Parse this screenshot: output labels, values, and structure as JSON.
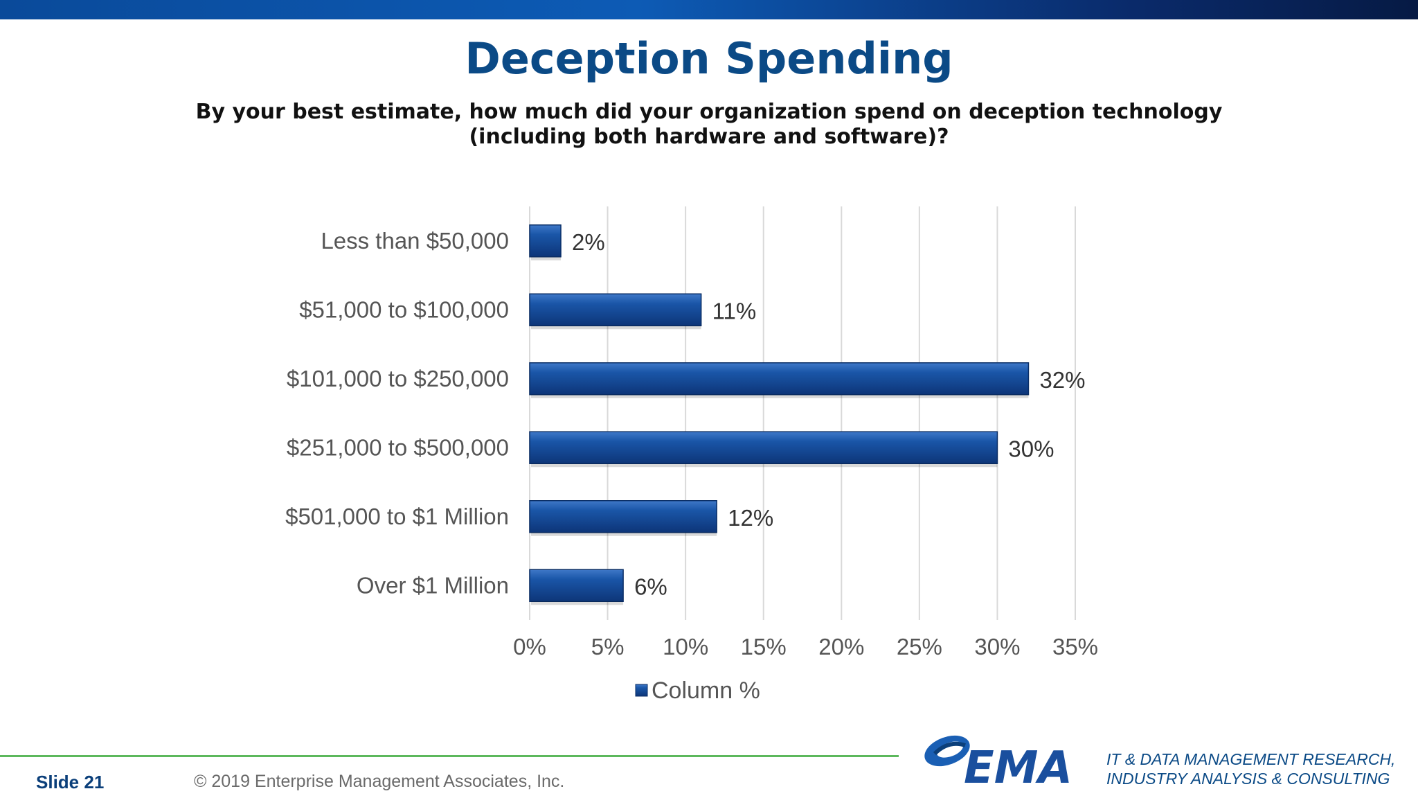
{
  "slide": {
    "title": "Deception Spending",
    "subtitle_line1": "By your best estimate, how much did your organization spend on deception technology",
    "subtitle_line2": "(including both hardware and software)?"
  },
  "chart_data": {
    "type": "bar",
    "orientation": "horizontal",
    "categories": [
      "Less than $50,000",
      "$51,000 to $100,000",
      "$101,000 to $250,000",
      "$251,000 to $500,000",
      "$501,000 to $1 Million",
      "Over $1 Million"
    ],
    "series": [
      {
        "name": "Column %",
        "values": [
          2,
          11,
          32,
          30,
          12,
          6
        ]
      }
    ],
    "data_labels": [
      "2%",
      "11%",
      "32%",
      "30%",
      "12%",
      "6%"
    ],
    "x_ticks": [
      "0%",
      "5%",
      "10%",
      "15%",
      "20%",
      "25%",
      "30%",
      "35%"
    ],
    "xlim": [
      0,
      35
    ],
    "grid": true,
    "legend_position": "bottom",
    "bar_color": "#1a4f9e"
  },
  "footer": {
    "slide_label": "Slide  21",
    "copyright": "© 2019 Enterprise Management Associates, Inc.",
    "logo_text": "EMA",
    "tagline_line1": "IT & DATA MANAGEMENT RESEARCH,",
    "tagline_line2": "INDUSTRY ANALYSIS & CONSULTING"
  }
}
